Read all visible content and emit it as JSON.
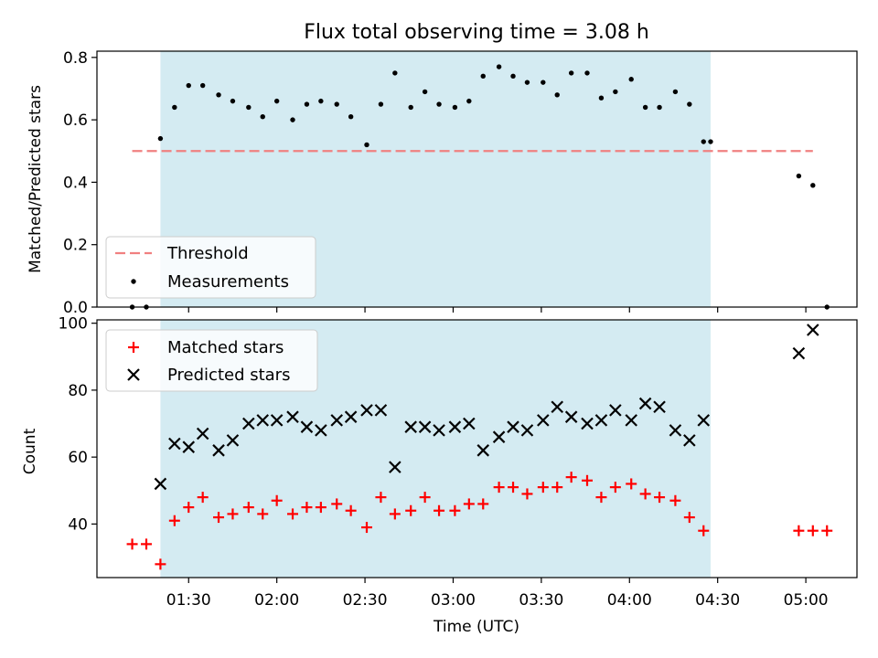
{
  "chart_data": {
    "type": "scatter",
    "title": "Flux total observing time = 3.08 h",
    "xlabel": "Time (UTC)",
    "x_tick_labels": [
      "01:30",
      "02:00",
      "02:30",
      "03:00",
      "03:30",
      "04:00",
      "04:30",
      "05:00"
    ],
    "x_ticks_hours": [
      1.5,
      2.0,
      2.5,
      3.0,
      3.5,
      4.0,
      4.5,
      5.0
    ],
    "xlim_hours": [
      0.98,
      5.29
    ],
    "observing_window_hours": [
      1.34,
      4.46
    ],
    "panels": [
      {
        "ylabel": "Matched/Predicted stars",
        "ylim": [
          0,
          0.82
        ],
        "yticks": [
          0.0,
          0.2,
          0.4,
          0.6,
          0.8
        ],
        "ytick_labels": [
          "0.0",
          "0.2",
          "0.4",
          "0.6",
          "0.8"
        ],
        "threshold": {
          "name": "Threshold",
          "value": 0.5,
          "x_range_hours": [
            1.18,
            5.04
          ],
          "color": "#f08080"
        },
        "series": [
          {
            "name": "Measurements",
            "marker": "dot",
            "color": "#000000",
            "x": [
              1.18,
              1.26,
              1.34,
              1.42,
              1.5,
              1.58,
              1.67,
              1.75,
              1.84,
              1.92,
              2.0,
              2.09,
              2.17,
              2.25,
              2.34,
              2.42,
              2.51,
              2.59,
              2.67,
              2.76,
              2.84,
              2.92,
              3.01,
              3.09,
              3.17,
              3.26,
              3.34,
              3.42,
              3.51,
              3.59,
              3.67,
              3.76,
              3.84,
              3.92,
              4.01,
              4.09,
              4.17,
              4.26,
              4.34,
              4.42,
              4.46,
              4.96,
              5.04,
              5.12
            ],
            "y": [
              0.0,
              0.0,
              0.54,
              0.64,
              0.71,
              0.71,
              0.68,
              0.66,
              0.64,
              0.61,
              0.66,
              0.6,
              0.65,
              0.66,
              0.65,
              0.61,
              0.52,
              0.65,
              0.75,
              0.64,
              0.69,
              0.65,
              0.64,
              0.66,
              0.74,
              0.77,
              0.74,
              0.72,
              0.72,
              0.68,
              0.75,
              0.75,
              0.67,
              0.69,
              0.73,
              0.64,
              0.64,
              0.69,
              0.65,
              0.53,
              0.53,
              0.42,
              0.39,
              0.0
            ]
          }
        ]
      },
      {
        "ylabel": "Count",
        "ylim": [
          24,
          101
        ],
        "yticks": [
          40,
          60,
          80,
          100
        ],
        "ytick_labels": [
          "40",
          "60",
          "80",
          "100"
        ],
        "series": [
          {
            "name": "Matched stars",
            "marker": "plus",
            "color": "#ff0000",
            "x": [
              1.18,
              1.26,
              1.34,
              1.42,
              1.5,
              1.58,
              1.67,
              1.75,
              1.84,
              1.92,
              2.0,
              2.09,
              2.17,
              2.25,
              2.34,
              2.42,
              2.51,
              2.59,
              2.67,
              2.76,
              2.84,
              2.92,
              3.01,
              3.09,
              3.17,
              3.26,
              3.34,
              3.42,
              3.51,
              3.59,
              3.67,
              3.76,
              3.84,
              3.92,
              4.01,
              4.09,
              4.17,
              4.26,
              4.34,
              4.42,
              4.96,
              5.04,
              5.12
            ],
            "y": [
              34,
              34,
              28,
              41,
              45,
              48,
              42,
              43,
              45,
              43,
              47,
              43,
              45,
              45,
              46,
              44,
              39,
              48,
              43,
              44,
              48,
              44,
              44,
              46,
              46,
              51,
              51,
              49,
              51,
              51,
              54,
              53,
              48,
              51,
              52,
              49,
              48,
              47,
              42,
              38,
              38,
              38,
              38
            ]
          },
          {
            "name": "Predicted stars",
            "marker": "x",
            "color": "#000000",
            "x": [
              1.34,
              1.42,
              1.5,
              1.58,
              1.67,
              1.75,
              1.84,
              1.92,
              2.0,
              2.09,
              2.17,
              2.25,
              2.34,
              2.42,
              2.51,
              2.59,
              2.67,
              2.76,
              2.84,
              2.92,
              3.01,
              3.09,
              3.17,
              3.26,
              3.34,
              3.42,
              3.51,
              3.59,
              3.67,
              3.76,
              3.84,
              3.92,
              4.01,
              4.09,
              4.17,
              4.26,
              4.34,
              4.42,
              4.96,
              5.04
            ],
            "y": [
              52,
              64,
              63,
              67,
              62,
              65,
              70,
              71,
              71,
              72,
              69,
              68,
              71,
              72,
              74,
              74,
              57,
              69,
              69,
              68,
              69,
              70,
              62,
              66,
              69,
              68,
              71,
              75,
              72,
              70,
              71,
              74,
              71,
              76,
              75,
              68,
              65,
              71,
              91,
              98
            ]
          }
        ]
      }
    ]
  }
}
